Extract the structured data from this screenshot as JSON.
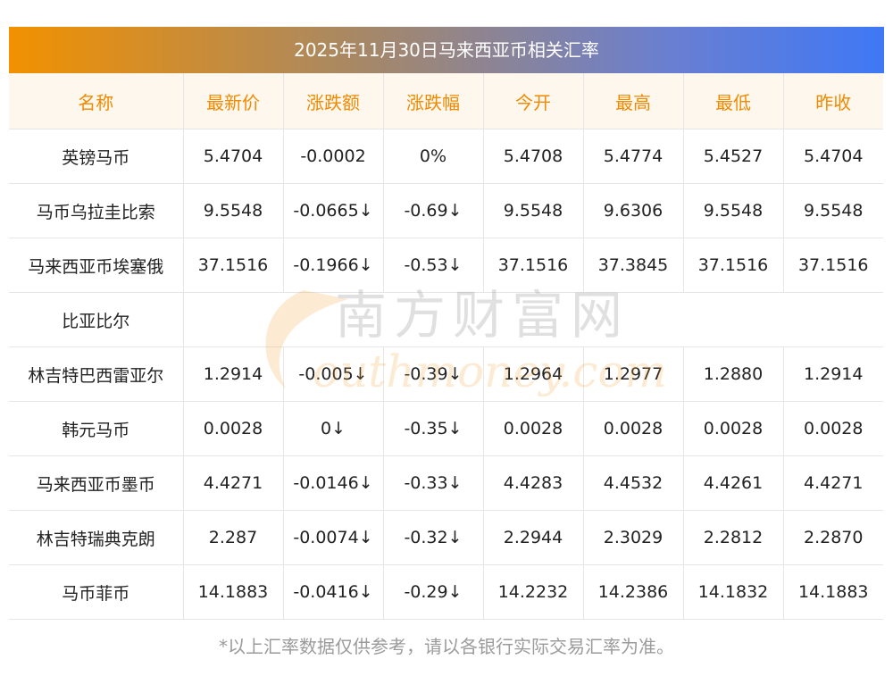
{
  "title": "2025年11月30日马来西亚币相关汇率",
  "headers": [
    "名称",
    "最新价",
    "涨跌额",
    "涨跌幅",
    "今开",
    "最高",
    "最低",
    "昨收"
  ],
  "rows": [
    {
      "name": "英镑马币",
      "latest": "5.4704",
      "change": "-0.0002",
      "pct": "0%",
      "open": "5.4708",
      "high": "5.4774",
      "low": "5.4527",
      "prev": "5.4704",
      "green": false
    },
    {
      "name": "马币乌拉圭比索",
      "latest": "9.5548",
      "change": "-0.0665↓",
      "pct": "-0.69↓",
      "open": "9.5548",
      "high": "9.6306",
      "low": "9.5548",
      "prev": "9.5548",
      "green": true
    },
    {
      "name": "马来西亚币埃塞俄",
      "name_cont": "比亚比尔",
      "latest": "37.1516",
      "change": "-0.1966↓",
      "pct": "-0.53↓",
      "open": "37.1516",
      "high": "37.3845",
      "low": "37.1516",
      "prev": "37.1516",
      "green": true
    },
    {
      "name": "林吉特巴西雷亚尔",
      "latest": "1.2914",
      "change": "-0.005↓",
      "pct": "-0.39↓",
      "open": "1.2964",
      "high": "1.2977",
      "low": "1.2880",
      "prev": "1.2914",
      "green": true
    },
    {
      "name": "韩元马币",
      "latest": "0.0028",
      "change": "0↓",
      "pct": "-0.35↓",
      "open": "0.0028",
      "high": "0.0028",
      "low": "0.0028",
      "prev": "0.0028",
      "green": true
    },
    {
      "name": "马来西亚币墨币",
      "latest": "4.4271",
      "change": "-0.0146↓",
      "pct": "-0.33↓",
      "open": "4.4283",
      "high": "4.4532",
      "low": "4.4261",
      "prev": "4.4271",
      "green": true
    },
    {
      "name": "林吉特瑞典克朗",
      "latest": "2.287",
      "change": "-0.0074↓",
      "pct": "-0.32↓",
      "open": "2.2944",
      "high": "2.3029",
      "low": "2.2812",
      "prev": "2.2870",
      "green": true
    },
    {
      "name": "马币菲币",
      "latest": "14.1883",
      "change": "-0.0416↓",
      "pct": "-0.29↓",
      "open": "14.2232",
      "high": "14.2386",
      "low": "14.1832",
      "prev": "14.1883",
      "green": true
    }
  ],
  "watermark": {
    "brand_cn": "南方财富网",
    "brand_en": "outhmoney.com"
  },
  "footnote": "*以上汇率数据仅供参考，请以各银行实际交易汇率为准。",
  "colors": {
    "header_text": "#f08a00",
    "green": "#118d11"
  }
}
